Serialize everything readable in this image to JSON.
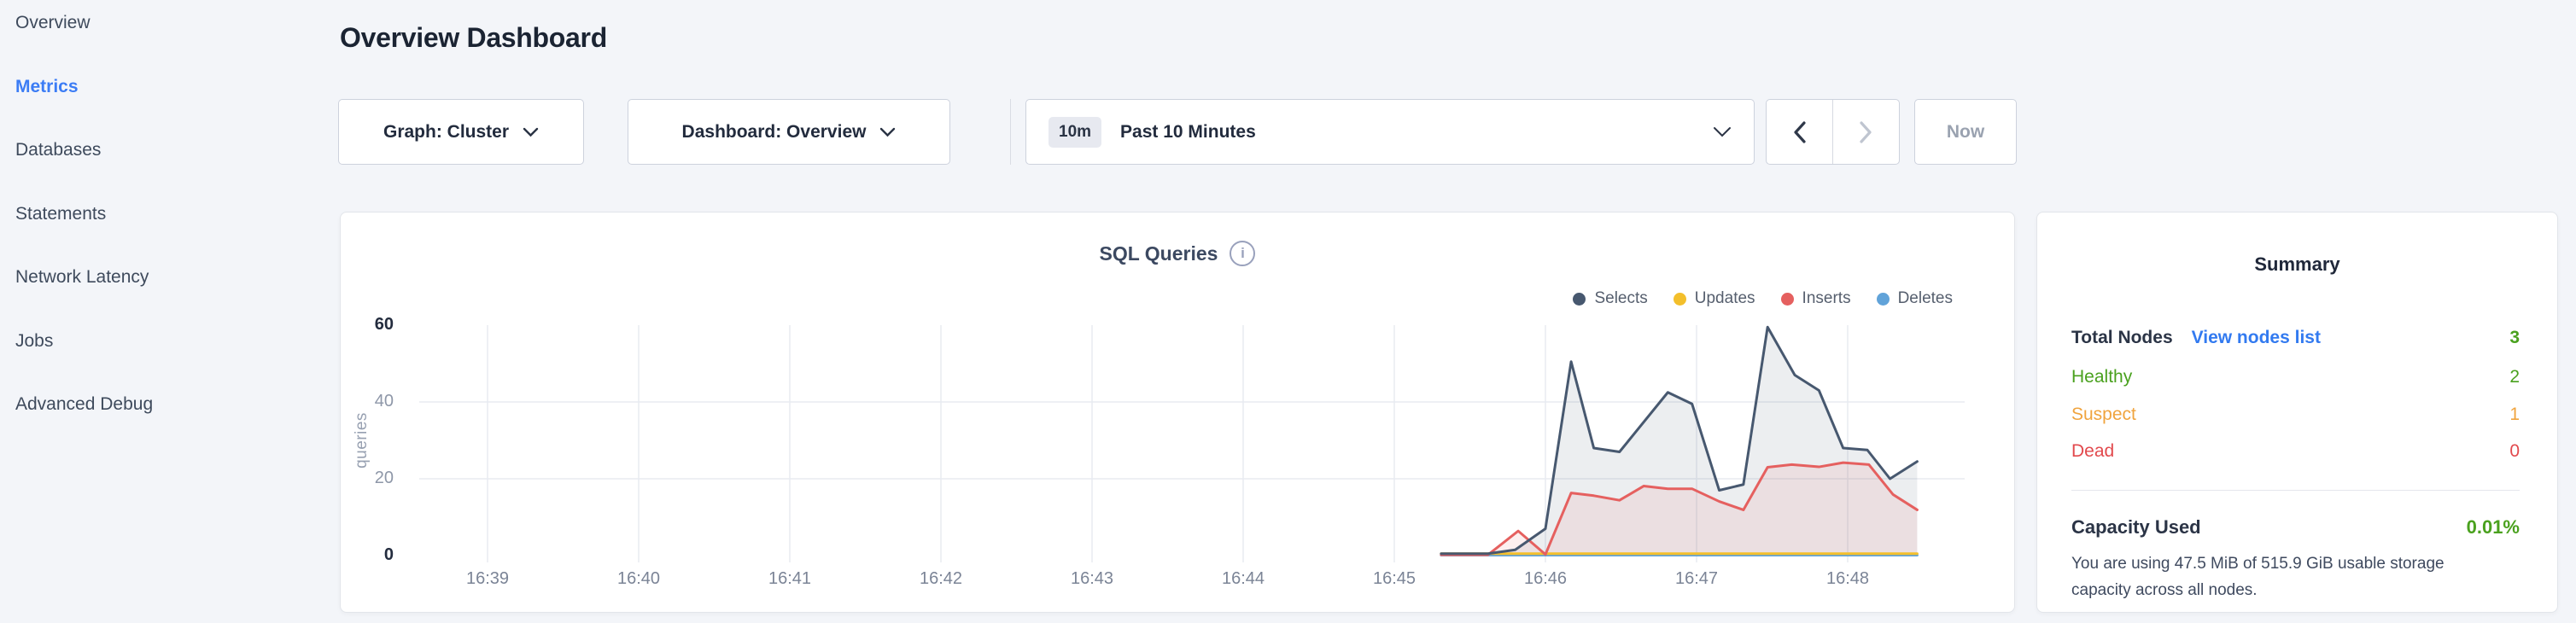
{
  "page": {
    "background": "#f3f5f9",
    "accent_blue": "#3b7cf5"
  },
  "sidebar": {
    "items": [
      {
        "label": "Overview",
        "active": false
      },
      {
        "label": "Metrics",
        "active": true
      },
      {
        "label": "Databases",
        "active": false
      },
      {
        "label": "Statements",
        "active": false
      },
      {
        "label": "Network Latency",
        "active": false
      },
      {
        "label": "Jobs",
        "active": false
      },
      {
        "label": "Advanced Debug",
        "active": false
      }
    ]
  },
  "header": {
    "title": "Overview Dashboard"
  },
  "controls": {
    "graph_dropdown_label": "Graph: Cluster",
    "dashboard_dropdown_label": "Dashboard: Overview",
    "time_badge": "10m",
    "time_label": "Past 10 Minutes",
    "now_label": "Now"
  },
  "chart": {
    "title": "SQL Queries",
    "info_icon_glyph": "i"
  },
  "chart_data": {
    "type": "area",
    "title": "SQL Queries",
    "xlabel": "",
    "ylabel": "queries",
    "ylim": [
      0,
      60
    ],
    "grid": true,
    "legend_position": "top-right",
    "x_ticks": [
      {
        "label": "16:39",
        "t": 0
      },
      {
        "label": "16:40",
        "t": 1
      },
      {
        "label": "16:41",
        "t": 2
      },
      {
        "label": "16:42",
        "t": 3
      },
      {
        "label": "16:43",
        "t": 4
      },
      {
        "label": "16:44",
        "t": 5
      },
      {
        "label": "16:45",
        "t": 6
      },
      {
        "label": "16:46",
        "t": 7
      },
      {
        "label": "16:47",
        "t": 8
      },
      {
        "label": "16:48",
        "t": 9
      }
    ],
    "y_ticks": [
      {
        "label": "0",
        "v": 0,
        "strong": true
      },
      {
        "label": "20",
        "v": 20,
        "strong": false
      },
      {
        "label": "40",
        "v": 40,
        "strong": false
      },
      {
        "label": "60",
        "v": 60,
        "strong": true
      }
    ],
    "series": [
      {
        "name": "Selects",
        "color": "#47586f",
        "fill": "rgba(71,88,111,0.10)",
        "points": [
          [
            6.31,
            0.5
          ],
          [
            6.62,
            0.5
          ],
          [
            6.8,
            1.5
          ],
          [
            7.0,
            7
          ],
          [
            7.17,
            50.5
          ],
          [
            7.32,
            28
          ],
          [
            7.49,
            27
          ],
          [
            7.81,
            42.5
          ],
          [
            7.97,
            39.5
          ],
          [
            8.15,
            17
          ],
          [
            8.31,
            18.5
          ],
          [
            8.47,
            59.5
          ],
          [
            8.65,
            47
          ],
          [
            8.81,
            43
          ],
          [
            8.97,
            28
          ],
          [
            9.13,
            27.5
          ],
          [
            9.28,
            20
          ],
          [
            9.46,
            24.5
          ]
        ]
      },
      {
        "name": "Updates",
        "color": "#f3bf2b",
        "fill": null,
        "points": [
          [
            6.31,
            0.5
          ],
          [
            9.46,
            0.5
          ]
        ]
      },
      {
        "name": "Inserts",
        "color": "#e5605f",
        "fill": "rgba(229,96,95,0.10)",
        "points": [
          [
            6.31,
            0.2
          ],
          [
            6.62,
            0.2
          ],
          [
            6.82,
            6.4
          ],
          [
            7.0,
            0.3
          ],
          [
            7.17,
            16.3
          ],
          [
            7.32,
            15.6
          ],
          [
            7.49,
            14.4
          ],
          [
            7.65,
            18.1
          ],
          [
            7.81,
            17.4
          ],
          [
            7.97,
            17.4
          ],
          [
            8.15,
            14.1
          ],
          [
            8.31,
            11.9
          ],
          [
            8.47,
            23.0
          ],
          [
            8.63,
            23.7
          ],
          [
            8.81,
            23.1
          ],
          [
            8.97,
            24.2
          ],
          [
            9.14,
            23.7
          ],
          [
            9.3,
            15.9
          ],
          [
            9.46,
            11.9
          ]
        ]
      },
      {
        "name": "Deletes",
        "color": "#61a3d9",
        "fill": null,
        "points": [
          [
            6.31,
            0.1
          ],
          [
            9.46,
            0.1
          ]
        ]
      }
    ]
  },
  "summary": {
    "title": "Summary",
    "total_nodes_label": "Total Nodes",
    "view_nodes_link": "View nodes list",
    "total_nodes_value": "3",
    "healthy_label": "Healthy",
    "healthy_value": "2",
    "suspect_label": "Suspect",
    "suspect_value": "1",
    "dead_label": "Dead",
    "dead_value": "0",
    "capacity_label": "Capacity Used",
    "capacity_value": "0.01%",
    "capacity_description": "You are using 47.5 MiB of 515.9 GiB usable storage capacity across all nodes.",
    "colors": {
      "green": "#4aa11e",
      "orange": "#f0a43e",
      "red": "#e2494d",
      "link_blue": "#327af0"
    }
  }
}
